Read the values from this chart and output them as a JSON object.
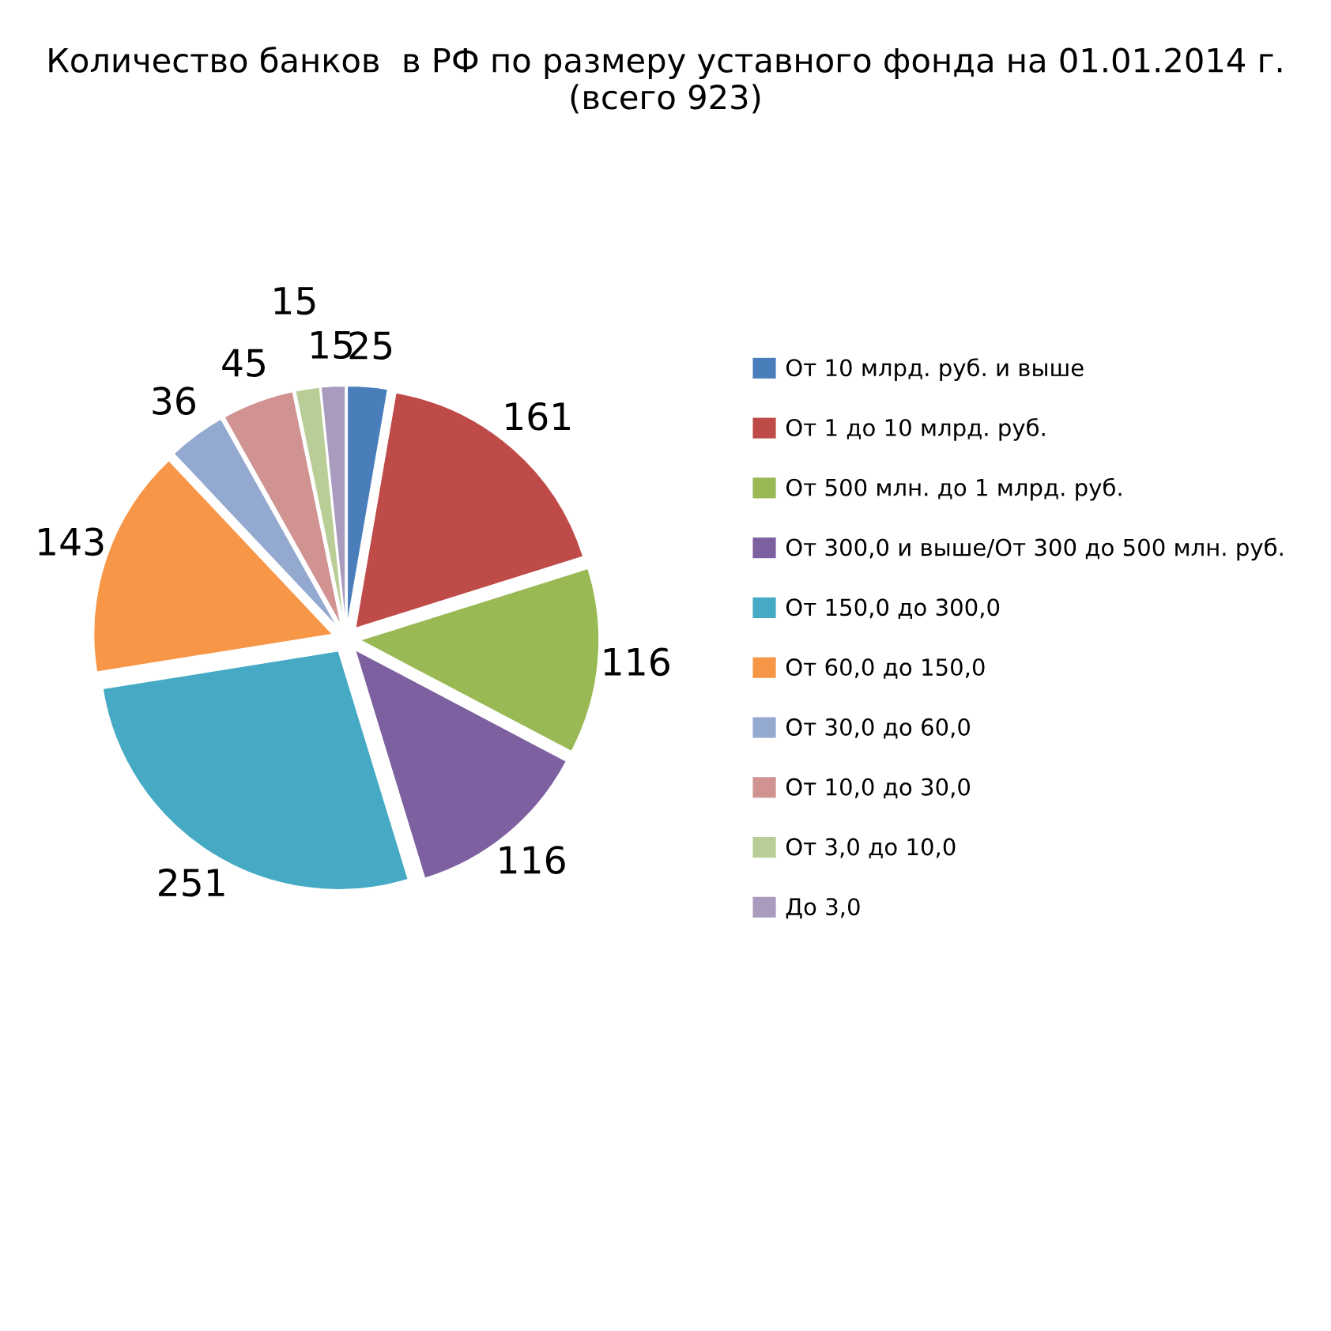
{
  "chart_data": {
    "type": "pie",
    "title": "Количество банков  в РФ по размеру уставного фонда на 01.01.2014 г. (всего 923)",
    "categories": [
      "От 10 млрд. руб. и выше",
      "От 1 до 10 млрд. руб.",
      "От 500 млн. до 1 млрд. руб.",
      "От 300,0 и выше/От 300 до 500 млн. руб.",
      "От 150,0 до 300,0",
      "От 60,0 до 150,0",
      "От 30,0 до 60,0",
      "От 10,0 до 30,0",
      "От 3,0 до 10,0",
      "До 3,0"
    ],
    "values": [
      25,
      161,
      116,
      116,
      251,
      143,
      36,
      45,
      15,
      15
    ],
    "colors": [
      "#4a7ebb",
      "#be4b48",
      "#98b954",
      "#7d60a0",
      "#46aac5",
      "#f79646",
      "#93a9cf",
      "#d19392",
      "#b9cd96",
      "#a99bbd"
    ],
    "data_labels": true,
    "legend": "right"
  }
}
